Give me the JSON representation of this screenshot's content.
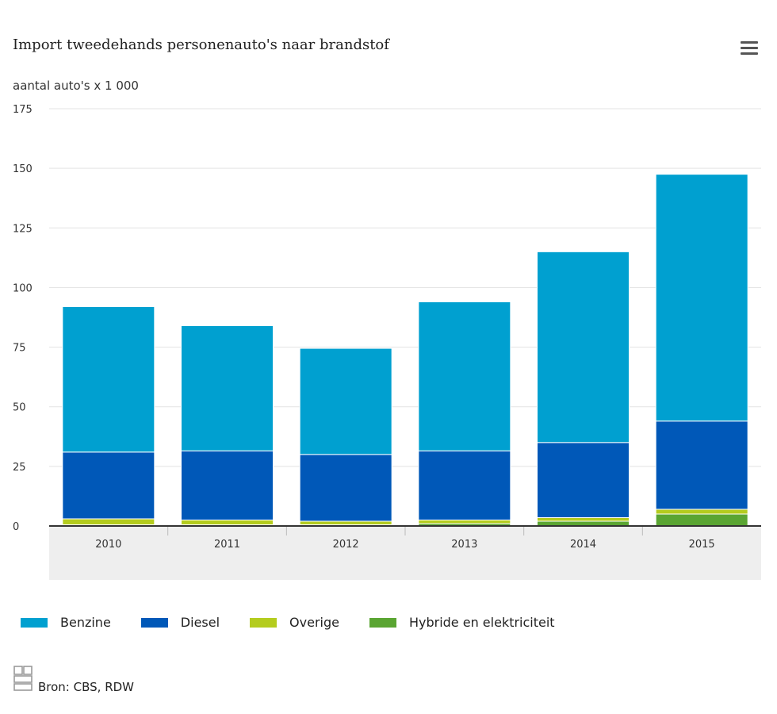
{
  "header": {
    "title": "Import tweedehands personenauto's naar brandstof",
    "menu_icon": "hamburger-menu-icon"
  },
  "unit_label": "aantal auto's x 1 000",
  "chart_data": {
    "type": "bar",
    "stacked": true,
    "title": "Import tweedehands personenauto's naar brandstof",
    "ylabel": "aantal auto's x 1 000",
    "categories": [
      "2010",
      "2011",
      "2012",
      "2013",
      "2014",
      "2015"
    ],
    "ylim": [
      0,
      175
    ],
    "yticks": [
      0,
      25,
      50,
      75,
      100,
      125,
      150,
      175
    ],
    "grid": true,
    "series": [
      {
        "name": "Hybride en elektriciteit",
        "color": "#5aa532",
        "values": [
          0.5,
          0.5,
          0.5,
          1,
          2,
          5
        ]
      },
      {
        "name": "Overige",
        "color": "#b4cc1e",
        "values": [
          2.5,
          2,
          1.5,
          1.5,
          1.5,
          2
        ]
      },
      {
        "name": "Diesel",
        "color": "#0058b8",
        "values": [
          28,
          29,
          28,
          29,
          31.5,
          37
        ]
      },
      {
        "name": "Benzine",
        "color": "#00a0d0",
        "values": [
          61,
          52.5,
          44.5,
          62.5,
          80,
          103.5
        ]
      }
    ],
    "legend_order": [
      "Benzine",
      "Diesel",
      "Overige",
      "Hybride en elektriciteit"
    ],
    "legend_position": "bottom"
  },
  "footer": {
    "source": "Bron: CBS, RDW",
    "logo_icon": "cbs-logo-icon"
  }
}
